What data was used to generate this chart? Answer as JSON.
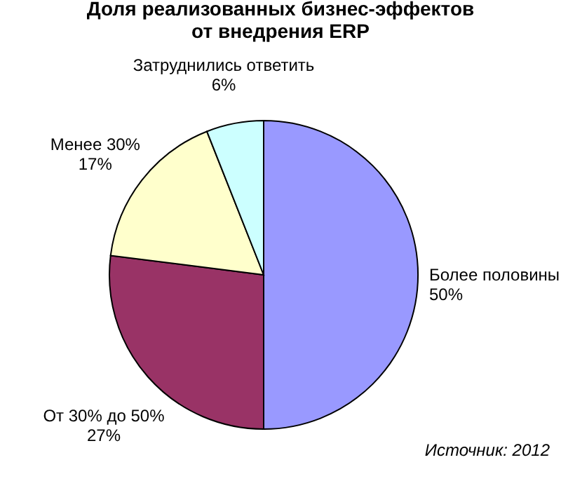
{
  "chart_data": {
    "type": "pie",
    "title": "Доля реализованных бизнес-эффектов\nот внедрения ERP",
    "categories": [
      "Более половины",
      "От 30% до 50%",
      "Менее 30%",
      "Затруднились ответить"
    ],
    "values": [
      50,
      27,
      17,
      6
    ],
    "value_labels": [
      "50%",
      "27%",
      "17%",
      "6%"
    ],
    "colors": [
      "#9999ff",
      "#993366",
      "#ffffcc",
      "#ccffff"
    ],
    "legend": false,
    "annotations": [
      "Источник: 2012"
    ]
  }
}
